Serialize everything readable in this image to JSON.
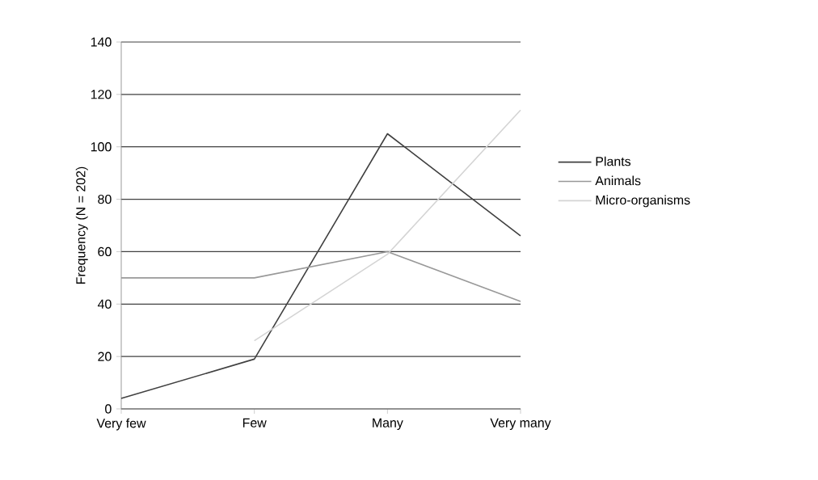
{
  "chart_data": {
    "type": "line",
    "ylabel": "Frequency (N = 202)",
    "categories": [
      "Very few",
      "Few",
      "Many",
      "Very many"
    ],
    "series": [
      {
        "name": "Plants",
        "color": "#404040",
        "values": [
          4,
          19,
          105,
          66
        ]
      },
      {
        "name": "Animals",
        "color": "#999999",
        "values": [
          50,
          50,
          60,
          41
        ]
      },
      {
        "name": "Micro-organisms",
        "color": "#d4d4d4",
        "values": [
          null,
          26,
          59,
          114
        ]
      }
    ],
    "ylim": [
      0,
      140
    ],
    "yticks": [
      0,
      20,
      40,
      60,
      80,
      100,
      120,
      140
    ],
    "grid": "y",
    "legend": "right",
    "marker": "none",
    "line_style": "solid"
  }
}
